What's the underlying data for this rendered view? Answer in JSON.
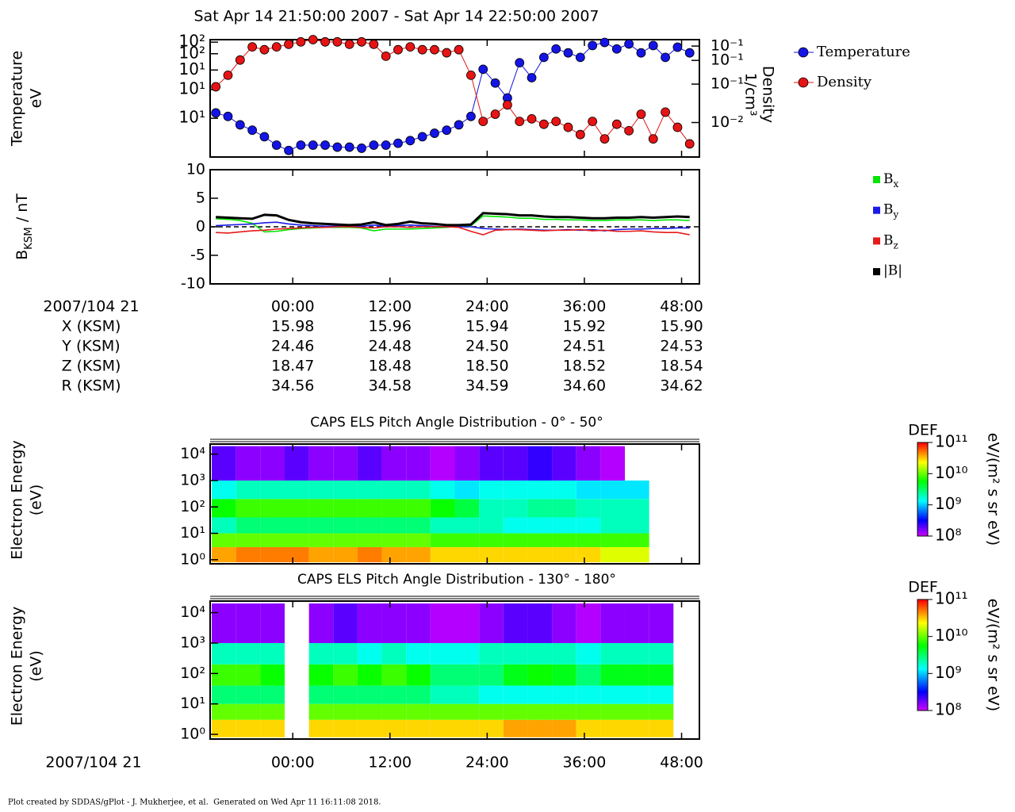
{
  "chart_data": [
    {
      "type": "line",
      "title": "Sat Apr 14 21:50:00 2007 - Sat Apr 14 22:50:00 2007",
      "x": [
        -9.5,
        -8,
        -6.5,
        -5,
        -3.5,
        -2,
        -0.5,
        1,
        2.5,
        4,
        5.5,
        7,
        8.5,
        10,
        11.5,
        13,
        14.5,
        16,
        17.5,
        19,
        20.5,
        22,
        23.5,
        25,
        26.5,
        28,
        29.5,
        31,
        32.5,
        34,
        35.5,
        37,
        38.5,
        40,
        41.5,
        43,
        44.5,
        46,
        47.5,
        49
      ],
      "xlim": [
        -10.2,
        50.2
      ],
      "ylabel": [
        "Temperature",
        "eV"
      ],
      "ylog": true,
      "ylim": [
        2,
        110
      ],
      "yticks": [
        {
          "value": 101,
          "label": "10²"
        },
        {
          "value": 68,
          "label": "10²"
        },
        {
          "value": 39,
          "label": "10¹"
        },
        {
          "value": 20,
          "label": "10¹"
        },
        {
          "value": 7.5,
          "label": "10¹"
        }
      ],
      "y2label": [
        "Density",
        "1/cm³"
      ],
      "y2lim": [
        0.004,
        0.15
      ],
      "y2ticks": [
        {
          "value": 0.123,
          "label": "10⁻¹"
        },
        {
          "value": 0.079,
          "label": "10⁻¹"
        },
        {
          "value": 0.038,
          "label": "10⁻¹"
        },
        {
          "value": 0.0116,
          "label": "10⁻²"
        }
      ],
      "markers": true,
      "legend": "outside-right",
      "series": [
        {
          "name": "Temperature",
          "color": "#1414e6",
          "values": [
            9,
            8,
            6,
            5,
            4,
            3,
            2.5,
            3,
            3,
            3,
            2.8,
            2.8,
            2.7,
            3,
            3,
            3.2,
            3.5,
            4,
            4.5,
            5,
            6,
            8,
            40,
            25,
            15,
            50,
            30,
            60,
            80,
            70,
            60,
            90,
            100,
            80,
            95,
            70,
            90,
            60,
            85,
            70
          ]
        },
        {
          "name": "Density",
          "color": "#e61414",
          "axis": "y2",
          "values": [
            0.035,
            0.05,
            0.08,
            0.12,
            0.11,
            0.12,
            0.13,
            0.14,
            0.15,
            0.14,
            0.14,
            0.13,
            0.14,
            0.13,
            0.09,
            0.11,
            0.12,
            0.11,
            0.11,
            0.1,
            0.11,
            0.05,
            0.012,
            0.015,
            0.02,
            0.012,
            0.013,
            0.011,
            0.012,
            0.01,
            0.008,
            0.012,
            0.007,
            0.011,
            0.009,
            0.015,
            0.007,
            0.016,
            0.01,
            0.006
          ]
        }
      ]
    },
    {
      "type": "line",
      "x": [
        -9.5,
        -8,
        -6.5,
        -5,
        -3.5,
        -2,
        -0.5,
        1,
        2.5,
        4,
        5.5,
        7,
        8.5,
        10,
        11.5,
        13,
        14.5,
        16,
        17.5,
        19,
        20.5,
        22,
        23.5,
        25,
        26.5,
        28,
        29.5,
        31,
        32.5,
        34,
        35.5,
        37,
        38.5,
        40,
        41.5,
        43,
        44.5,
        46,
        47.5,
        49
      ],
      "xlim": [
        -10.2,
        50.2
      ],
      "ylabel": "BKSM / nT",
      "ylim": [
        -10,
        10
      ],
      "yticks": [
        10,
        5,
        0,
        -5,
        -10
      ],
      "legend": "outside-right",
      "series": [
        {
          "name": "Bx",
          "color": "#00e600",
          "values": [
            1.4,
            1.3,
            1.1,
            0.6,
            -0.9,
            -0.8,
            -0.5,
            -0.3,
            -0.2,
            -0.1,
            -0.1,
            -0.1,
            -0.2,
            -0.7,
            -0.4,
            -0.4,
            -0.4,
            -0.3,
            -0.2,
            -0.1,
            0.1,
            0.2,
            1.9,
            1.8,
            1.7,
            1.5,
            1.5,
            1.3,
            1.3,
            1.2,
            1.2,
            1.1,
            1.1,
            1.2,
            1.2,
            1.2,
            1.1,
            1.2,
            1.2,
            1.1
          ]
        },
        {
          "name": "By",
          "color": "#1a1ae6",
          "values": [
            0.2,
            0.3,
            0.4,
            0.5,
            0.7,
            0.8,
            0.5,
            0.3,
            0.2,
            0.1,
            0.1,
            0.1,
            0.1,
            0.3,
            0.1,
            0.2,
            0.3,
            0.2,
            0.1,
            0,
            0,
            0,
            -0.3,
            -0.4,
            -0.5,
            -0.4,
            -0.5,
            -0.6,
            -0.6,
            -0.5,
            -0.6,
            -0.5,
            -0.7,
            -0.5,
            -0.4,
            -0.4,
            -0.3,
            -0.3,
            -0.2,
            -0.2
          ]
        },
        {
          "name": "Bz",
          "color": "#e61a1a",
          "values": [
            -1,
            -1.1,
            -0.9,
            -0.7,
            -0.6,
            -0.4,
            -0.3,
            -0.2,
            -0.1,
            -0.1,
            0,
            0,
            -0.1,
            -0.2,
            0,
            0,
            -0.1,
            0,
            0,
            0,
            -0.1,
            -0.8,
            -1.4,
            -0.6,
            -0.5,
            -0.5,
            -0.6,
            -0.7,
            -0.6,
            -0.6,
            -0.5,
            -0.7,
            -0.6,
            -0.8,
            -0.8,
            -0.7,
            -0.9,
            -1,
            -1,
            -1.4
          ]
        },
        {
          "name": "|B|",
          "color": "#000000",
          "values": [
            1.7,
            1.6,
            1.5,
            1.4,
            2.1,
            2,
            1.2,
            0.8,
            0.6,
            0.5,
            0.4,
            0.3,
            0.4,
            0.8,
            0.3,
            0.5,
            0.9,
            0.6,
            0.5,
            0.3,
            0.3,
            0.4,
            2.4,
            2.3,
            2.2,
            2,
            2,
            1.8,
            1.7,
            1.7,
            1.6,
            1.5,
            1.5,
            1.6,
            1.6,
            1.7,
            1.6,
            1.7,
            1.8,
            1.7
          ]
        }
      ]
    },
    {
      "type": "heatmap",
      "title": "CAPS ELS Pitch Angle Distribution - 0° - 50°",
      "ylabel": [
        "Electron Energy",
        "(eV)"
      ],
      "xlim": [
        -10.2,
        50.2
      ],
      "ylog": true,
      "ylim": [
        0.7,
        24000
      ],
      "yticks": [
        {
          "value": 1,
          "label": "10⁰"
        },
        {
          "value": 10,
          "label": "10¹"
        },
        {
          "value": 100,
          "label": "10²"
        },
        {
          "value": 1000,
          "label": "10³"
        },
        {
          "value": 10000,
          "label": "10⁴"
        }
      ],
      "time_bins": [
        -10,
        -7,
        -4,
        -1,
        2,
        5,
        8,
        11,
        14,
        17,
        20,
        23,
        26,
        29,
        32,
        35,
        38,
        41,
        44,
        47,
        50
      ],
      "energy_bins": [
        0.8,
        3,
        10,
        40,
        200,
        1000,
        20000
      ],
      "z": [
        [
          40000000000.0,
          50000000000.0,
          50000000000.0,
          50000000000.0,
          40000000000.0,
          40000000000.0,
          50000000000.0,
          40000000000.0,
          40000000000.0,
          30000000000.0,
          30000000000.0,
          30000000000.0,
          30000000000.0,
          30000000000.0,
          30000000000.0,
          30000000000.0,
          20000000000.0,
          20000000000.0,
          null,
          null
        ],
        [
          10000000000.0,
          10000000000.0,
          10000000000.0,
          10000000000.0,
          10000000000.0,
          10000000000.0,
          10000000000.0,
          10000000000.0,
          10000000000.0,
          8000000000.0,
          8000000000.0,
          8000000000.0,
          8000000000.0,
          8000000000.0,
          8000000000.0,
          8000000000.0,
          8000000000.0,
          8000000000.0,
          null,
          null
        ],
        [
          2000000000.0,
          3000000000.0,
          3000000000.0,
          3000000000.0,
          3000000000.0,
          3000000000.0,
          3000000000.0,
          3000000000.0,
          3000000000.0,
          2000000000.0,
          2000000000.0,
          2000000000.0,
          1500000000.0,
          1500000000.0,
          1500000000.0,
          1500000000.0,
          2000000000.0,
          2000000000.0,
          null,
          null
        ],
        [
          6000000000.0,
          8000000000.0,
          8000000000.0,
          8000000000.0,
          8000000000.0,
          8000000000.0,
          8000000000.0,
          8000000000.0,
          8000000000.0,
          6000000000.0,
          4000000000.0,
          2000000000.0,
          2000000000.0,
          2500000000.0,
          2500000000.0,
          2000000000.0,
          2000000000.0,
          2000000000.0,
          null,
          null
        ],
        [
          1500000000.0,
          2000000000.0,
          2000000000.0,
          2000000000.0,
          2000000000.0,
          2000000000.0,
          2000000000.0,
          2000000000.0,
          2000000000.0,
          1500000000.0,
          1200000000.0,
          1500000000.0,
          1500000000.0,
          1500000000.0,
          1500000000.0,
          1200000000.0,
          1200000000.0,
          1200000000.0,
          null,
          null
        ],
        [
          200000000.0,
          150000000.0,
          150000000.0,
          200000000.0,
          150000000.0,
          150000000.0,
          200000000.0,
          150000000.0,
          150000000.0,
          120000000.0,
          150000000.0,
          200000000.0,
          200000000.0,
          250000000.0,
          200000000.0,
          150000000.0,
          120000000.0,
          null,
          null,
          null
        ]
      ],
      "zlabel": "DEF",
      "zunit": "eV/(m² s sr eV)",
      "zlim": [
        100000000.0,
        100000000000.0
      ],
      "zticks": [
        {
          "value": 100000000.0,
          "label": "10⁸"
        },
        {
          "value": 1000000000.0,
          "label": "10⁹"
        },
        {
          "value": 10000000000.0,
          "label": "10¹⁰"
        },
        {
          "value": 100000000000.0,
          "label": "10¹¹"
        }
      ]
    },
    {
      "type": "heatmap",
      "title": "CAPS ELS Pitch Angle Distribution - 130° - 180°",
      "ylabel": [
        "Electron Energy",
        "(eV)"
      ],
      "xlabel": "2007/104 21",
      "xlim": [
        -10.2,
        50.2
      ],
      "xticks": [
        {
          "value": 0,
          "label": "00:00"
        },
        {
          "value": 12,
          "label": "12:00"
        },
        {
          "value": 24,
          "label": "24:00"
        },
        {
          "value": 36,
          "label": "36:00"
        },
        {
          "value": 48,
          "label": "48:00"
        }
      ],
      "ylog": true,
      "ylim": [
        0.7,
        24000
      ],
      "yticks": [
        {
          "value": 1,
          "label": "10⁰"
        },
        {
          "value": 10,
          "label": "10¹"
        },
        {
          "value": 100,
          "label": "10²"
        },
        {
          "value": 1000,
          "label": "10³"
        },
        {
          "value": 10000,
          "label": "10⁴"
        }
      ],
      "time_bins": [
        -10,
        -7,
        -4,
        -1,
        2,
        5,
        8,
        11,
        14,
        17,
        20,
        23,
        26,
        29,
        32,
        35,
        38,
        41,
        44,
        47,
        50
      ],
      "energy_bins": [
        0.8,
        3,
        10,
        40,
        200,
        1000,
        20000
      ],
      "z": [
        [
          30000000000.0,
          30000000000.0,
          30000000000.0,
          null,
          30000000000.0,
          30000000000.0,
          30000000000.0,
          30000000000.0,
          30000000000.0,
          30000000000.0,
          30000000000.0,
          30000000000.0,
          40000000000.0,
          40000000000.0,
          40000000000.0,
          30000000000.0,
          30000000000.0,
          30000000000.0,
          30000000000.0,
          null
        ],
        [
          10000000000.0,
          10000000000.0,
          10000000000.0,
          null,
          10000000000.0,
          10000000000.0,
          10000000000.0,
          10000000000.0,
          10000000000.0,
          10000000000.0,
          10000000000.0,
          10000000000.0,
          10000000000.0,
          10000000000.0,
          10000000000.0,
          10000000000.0,
          10000000000.0,
          10000000000.0,
          10000000000.0,
          null
        ],
        [
          3000000000.0,
          3000000000.0,
          3000000000.0,
          null,
          3000000000.0,
          3000000000.0,
          3000000000.0,
          3000000000.0,
          3000000000.0,
          2000000000.0,
          2000000000.0,
          1500000000.0,
          1500000000.0,
          1500000000.0,
          1500000000.0,
          1500000000.0,
          1500000000.0,
          1500000000.0,
          1500000000.0,
          null
        ],
        [
          8000000000.0,
          8000000000.0,
          6000000000.0,
          null,
          6000000000.0,
          8000000000.0,
          6000000000.0,
          8000000000.0,
          6000000000.0,
          3000000000.0,
          3000000000.0,
          3000000000.0,
          5000000000.0,
          6000000000.0,
          5000000000.0,
          3000000000.0,
          5000000000.0,
          5000000000.0,
          5000000000.0,
          null
        ],
        [
          2000000000.0,
          2000000000.0,
          2000000000.0,
          null,
          2000000000.0,
          2000000000.0,
          1500000000.0,
          2000000000.0,
          1500000000.0,
          1500000000.0,
          1500000000.0,
          2000000000.0,
          2000000000.0,
          2000000000.0,
          2000000000.0,
          1500000000.0,
          2000000000.0,
          2000000000.0,
          2000000000.0,
          null
        ],
        [
          150000000.0,
          150000000.0,
          150000000.0,
          null,
          150000000.0,
          200000000.0,
          150000000.0,
          150000000.0,
          150000000.0,
          120000000.0,
          120000000.0,
          150000000.0,
          200000000.0,
          200000000.0,
          150000000.0,
          120000000.0,
          150000000.0,
          150000000.0,
          150000000.0,
          null
        ]
      ],
      "zlabel": "DEF",
      "zunit": "eV/(m² s sr eV)",
      "zlim": [
        100000000.0,
        100000000000.0
      ],
      "zticks": [
        {
          "value": 100000000.0,
          "label": "10⁸"
        },
        {
          "value": 1000000000.0,
          "label": "10⁹"
        },
        {
          "value": 10000000000.0,
          "label": "10¹⁰"
        },
        {
          "value": 100000000000.0,
          "label": "10¹¹"
        }
      ]
    }
  ],
  "ephemeris": {
    "label": "2007/104 21",
    "times": [
      {
        "value": 0,
        "label": "00:00"
      },
      {
        "value": 12,
        "label": "12:00"
      },
      {
        "value": 24,
        "label": "24:00"
      },
      {
        "value": 36,
        "label": "36:00"
      },
      {
        "value": 48,
        "label": "48:00"
      }
    ],
    "rows": [
      {
        "name": "X (KSM)",
        "values": [
          "15.98",
          "15.96",
          "15.94",
          "15.92",
          "15.90"
        ]
      },
      {
        "name": "Y (KSM)",
        "values": [
          "24.46",
          "24.48",
          "24.50",
          "24.51",
          "24.53"
        ]
      },
      {
        "name": "Z (KSM)",
        "values": [
          "18.47",
          "18.48",
          "18.50",
          "18.52",
          "18.54"
        ]
      },
      {
        "name": "R (KSM)",
        "values": [
          "34.56",
          "34.58",
          "34.59",
          "34.60",
          "34.62"
        ]
      }
    ]
  },
  "footer": "Plot created by SDDAS/gPlot - J. Mukherjee, et al.  Generated on Wed Apr 11 16:11:08 2018."
}
